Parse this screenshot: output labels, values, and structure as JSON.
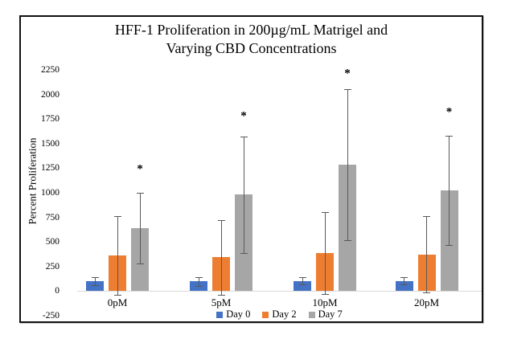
{
  "chart_data": {
    "type": "bar",
    "title": "HFF-1 Proliferation in 200µg/mL Matrigel and Varying CBD Concentrations",
    "title_lines": [
      "HFF-1 Proliferation in 200µg/mL Matrigel and",
      "Varying CBD Concentrations"
    ],
    "xlabel": "",
    "ylabel": "Percent Proliferation",
    "ylim": [
      -250,
      2250
    ],
    "ytick_step": 250,
    "grid": false,
    "legend_position": "bottom",
    "categories": [
      "0pM",
      "5pM",
      "10pM",
      "20pM"
    ],
    "series": [
      {
        "name": "Day 0",
        "color": "#4472C4",
        "values": [
          100,
          100,
          105,
          105
        ],
        "errors": [
          40,
          45,
          40,
          40
        ]
      },
      {
        "name": "Day 2",
        "color": "#ED7D31",
        "values": [
          360,
          345,
          385,
          375
        ],
        "errors": [
          400,
          380,
          415,
          385
        ]
      },
      {
        "name": "Day 7",
        "color": "#A6A6A6",
        "values": [
          640,
          980,
          1285,
          1025
        ],
        "errors": [
          360,
          590,
          770,
          555
        ]
      }
    ],
    "annotations": [
      {
        "text": "*",
        "category": "0pM",
        "series": "Day 7",
        "y": 1230
      },
      {
        "text": "*",
        "category": "5pM",
        "series": "Day 7",
        "y": 1770
      },
      {
        "text": "*",
        "category": "10pM",
        "series": "Day 7",
        "y": 2200
      },
      {
        "text": "*",
        "category": "20pM",
        "series": "Day 7",
        "y": 1805
      }
    ],
    "error_bar_color": "#595959",
    "axis_line_color": "#D9D9D9"
  }
}
